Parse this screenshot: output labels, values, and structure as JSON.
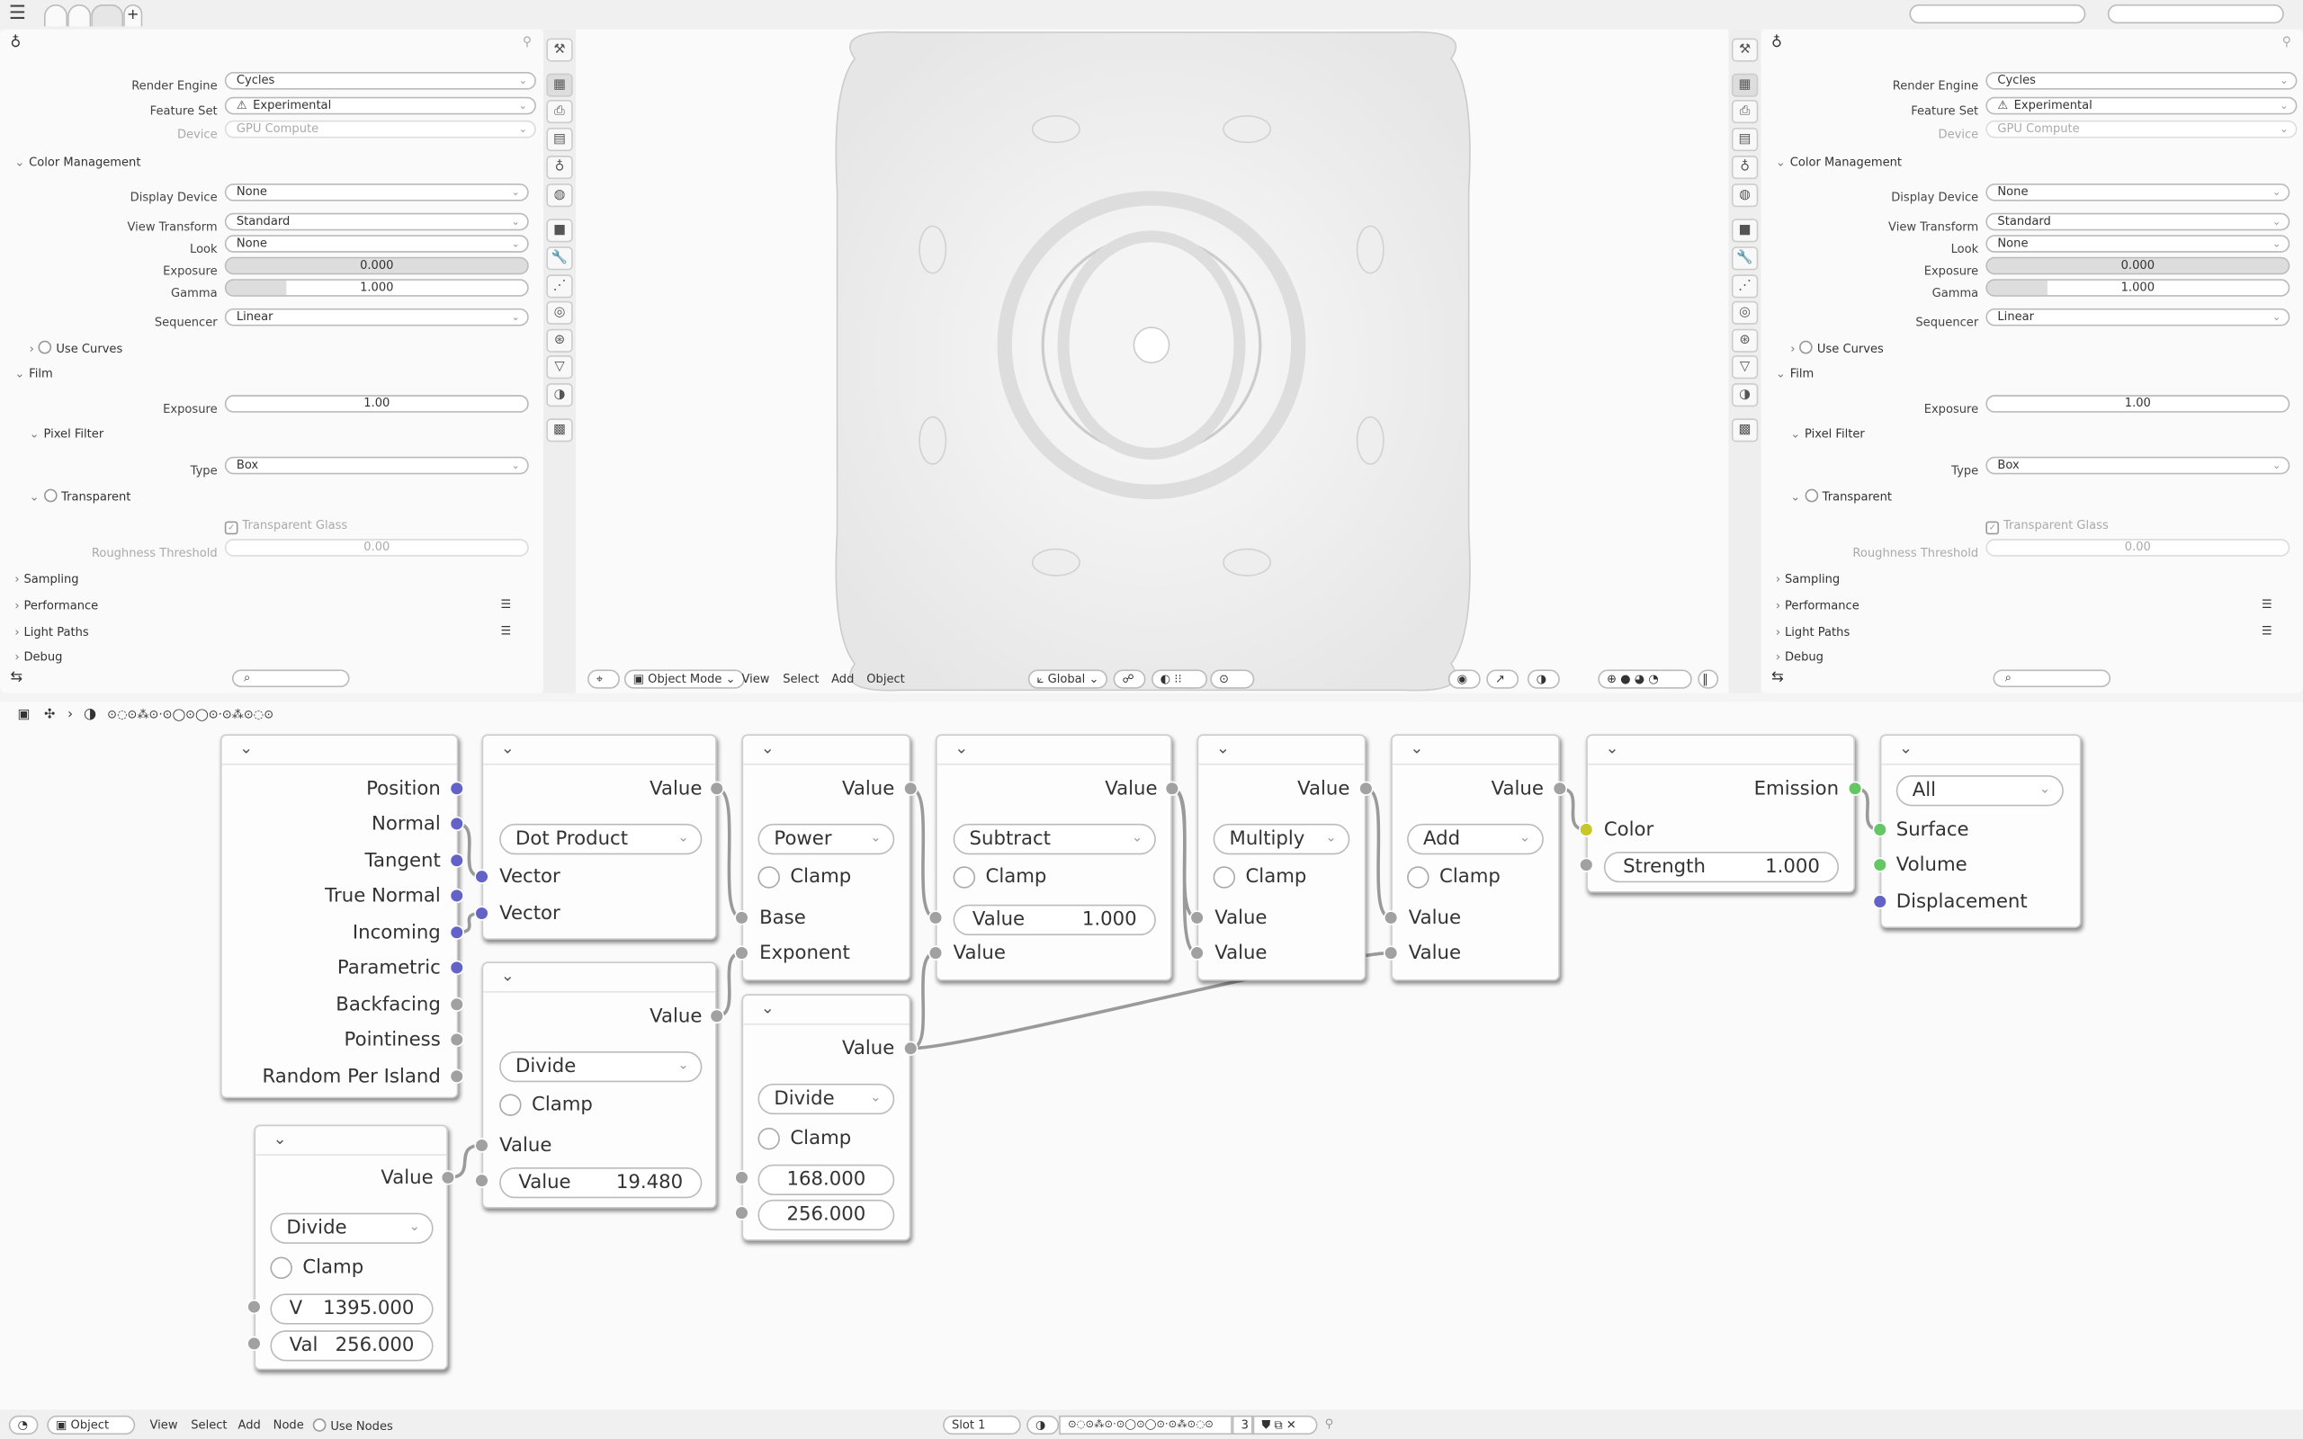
{
  "colors": {
    "vector_socket": "#6363c7",
    "float_socket": "#a1a1a1",
    "shader_socket": "#63c763",
    "color_socket": "#c7c729",
    "accent": "#4772b3"
  },
  "topbar": {
    "menu_icon": "hamburger-icon",
    "add_tab": "+"
  },
  "props": {
    "rows": [
      {
        "label": "Render Engine",
        "value": "Cycles"
      },
      {
        "label": "Feature Set",
        "value": "Experimental"
      },
      {
        "label": "Device",
        "value": "GPU Compute"
      },
      {
        "label": "Color Management"
      },
      {
        "label": "Display Device",
        "value": "None"
      },
      {
        "label": "View Transform",
        "value": "Standard"
      },
      {
        "label": "Look",
        "value": "None"
      },
      {
        "label": "Exposure",
        "value": "0.000"
      },
      {
        "label": "Gamma",
        "value": "1.000",
        "fill": 0.2
      },
      {
        "label": "Sequencer",
        "value": "Linear"
      },
      {
        "label": "Use Curves"
      },
      {
        "label": "Film"
      },
      {
        "label": "Exposure",
        "value": "1.00"
      },
      {
        "label": "Pixel Filter"
      },
      {
        "label": "Type",
        "value": "Box"
      },
      {
        "label": "Transparent"
      },
      {
        "label": "Transparent Glass",
        "checked": true
      },
      {
        "label": "Roughness Threshold",
        "value": "0.00"
      },
      {
        "label": "Sampling"
      },
      {
        "label": "Performance"
      },
      {
        "label": "Light Paths"
      },
      {
        "label": "Debug"
      }
    ],
    "search_placeholder": ""
  },
  "viewport": {
    "mode": "Object Mode",
    "menus": [
      "View",
      "Select",
      "Add",
      "Object"
    ],
    "orientation": "Global"
  },
  "node_editor": {
    "breadcrumb": "⊙◌⊙⁂⊙·⊙◯⊙◯⊙·⊙⁂⊙◌⊙",
    "nodes": {
      "geometry": {
        "outputs": [
          "Position",
          "Normal",
          "Tangent",
          "True Normal",
          "Incoming",
          "Parametric",
          "Backfacing",
          "Pointiness",
          "Random Per Island"
        ]
      },
      "dot": {
        "output": "Value",
        "operation": "Dot Product",
        "inputs": [
          "Vector",
          "Vector"
        ]
      },
      "div1": {
        "output": "Value",
        "operation": "Divide",
        "clamp": "Clamp",
        "input": "Value",
        "field_label": "Value",
        "field_value": "19.480"
      },
      "power": {
        "output": "Value",
        "operation": "Power",
        "clamp": "Clamp",
        "inputs": [
          "Base",
          "Exponent"
        ]
      },
      "div2": {
        "output": "Value",
        "operation": "Divide",
        "clamp": "Clamp",
        "values": [
          "168.000",
          "256.000"
        ]
      },
      "subtract": {
        "output": "Value",
        "operation": "Subtract",
        "clamp": "Clamp",
        "field_label": "Value",
        "field_value": "1.000",
        "input": "Value"
      },
      "multiply": {
        "output": "Value",
        "operation": "Multiply",
        "clamp": "Clamp",
        "inputs": [
          "Value",
          "Value"
        ]
      },
      "add": {
        "output": "Value",
        "operation": "Add",
        "clamp": "Clamp",
        "inputs": [
          "Value",
          "Value"
        ]
      },
      "emission": {
        "output": "Emission",
        "color": "Color",
        "strength_label": "Strength",
        "strength": "1.000"
      },
      "output": {
        "target": "All",
        "inputs": [
          "Surface",
          "Volume",
          "Displacement"
        ]
      },
      "div3": {
        "output": "Value",
        "operation": "Divide",
        "clamp": "Clamp",
        "v_label": "V",
        "v_value": "1395.000",
        "val_label": "Val",
        "val_value": "256.000"
      }
    }
  },
  "footer": {
    "object": "Object",
    "menus": [
      "View",
      "Select",
      "Add",
      "Node"
    ],
    "use_nodes": "Use Nodes",
    "slot": "Slot 1",
    "material": "⊙◌⊙⁂⊙·⊙◯⊙◯⊙·⊙⁂⊙◌⊙",
    "users": "3"
  }
}
